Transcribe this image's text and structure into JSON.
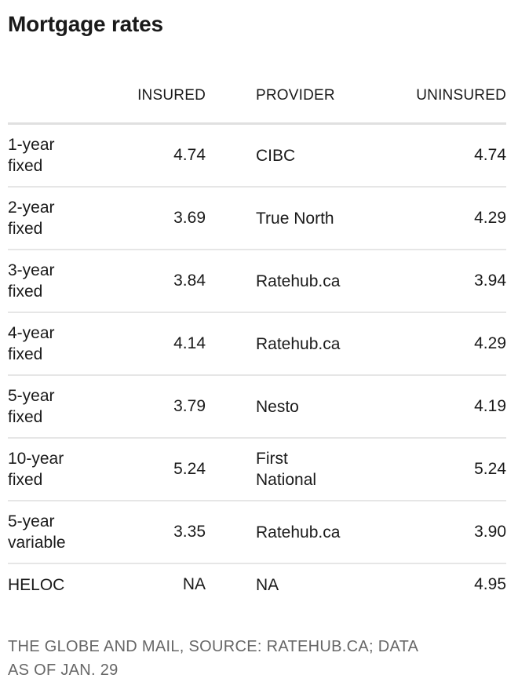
{
  "colors": {
    "text": "#1a1a1a",
    "row_separator": "#e6e6e6",
    "header_separator": "#e0e0e0",
    "footer_text": "#676767",
    "background": "#ffffff"
  },
  "chart_data": {
    "type": "table",
    "title": "Mortgage rates",
    "columns": {
      "term": "",
      "insured": "INSURED",
      "provider": "PROVIDER",
      "uninsured": "UNINSURED"
    },
    "rows": [
      {
        "term": "1-year fixed",
        "insured": "4.74",
        "provider": "CIBC",
        "uninsured": "4.74"
      },
      {
        "term": "2-year fixed",
        "insured": "3.69",
        "provider": "True North",
        "uninsured": "4.29"
      },
      {
        "term": "3-year fixed",
        "insured": "3.84",
        "provider": "Ratehub.ca",
        "uninsured": "3.94"
      },
      {
        "term": "4-year fixed",
        "insured": "4.14",
        "provider": "Ratehub.ca",
        "uninsured": "4.29"
      },
      {
        "term": "5-year fixed",
        "insured": "3.79",
        "provider": "Nesto",
        "uninsured": "4.19"
      },
      {
        "term": "10-year fixed",
        "insured": "5.24",
        "provider": "First National",
        "uninsured": "5.24"
      },
      {
        "term": "5-year variable",
        "insured": "3.35",
        "provider": "Ratehub.ca",
        "uninsured": "3.90"
      },
      {
        "term": "HELOC",
        "insured": "NA",
        "provider": "NA",
        "uninsured": "4.95"
      }
    ],
    "layout": {
      "grid": "off",
      "value_alignment": "right",
      "label_alignment": "left"
    }
  },
  "footer": {
    "lines": [
      "THE GLOBE AND MAIL, SOURCE: RATEHUB.CA; DATA",
      "AS OF JAN. 29"
    ]
  }
}
